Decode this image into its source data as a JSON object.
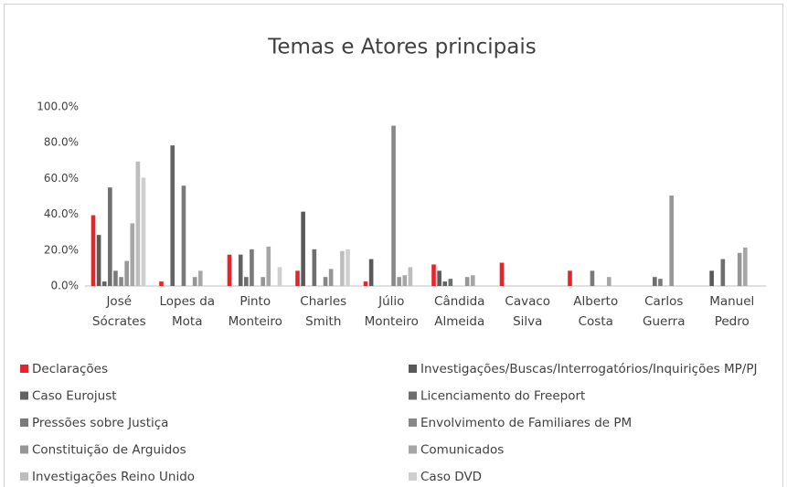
{
  "chart_data": {
    "type": "bar",
    "title": "Temas e Atores principais",
    "categories": [
      "José Sócrates",
      "Lopes da Mota",
      "Pinto Monteiro",
      "Charles Smith",
      "Júlio Monteiro",
      "Cândida Almeida",
      "Cavaco Silva",
      "Alberto Costa",
      "Carlos Guerra",
      "Manuel Pedro"
    ],
    "series": [
      {
        "name": "Declarações",
        "color": "#e3262c",
        "values": [
          39.5,
          2.5,
          17.5,
          8.5,
          2.5,
          12,
          13,
          8.5,
          0,
          0
        ]
      },
      {
        "name": "Investigações/Buscas/Interrogatórios/Inquirições MP/PJ",
        "color": "#595959",
        "values": [
          28.5,
          0,
          0,
          41.5,
          15,
          8.5,
          0,
          0,
          0,
          8.5
        ]
      },
      {
        "name": "Caso Eurojust",
        "color": "#636363",
        "values": [
          2.5,
          78.5,
          17.5,
          0,
          0,
          2.5,
          0,
          0,
          0,
          0
        ]
      },
      {
        "name": "Licenciamento do Freeport",
        "color": "#6e6e6e",
        "values": [
          55,
          0,
          5,
          20.5,
          0,
          4,
          0,
          0,
          5,
          15
        ]
      },
      {
        "name": "Pressões sobre Justiça",
        "color": "#7a7a7a",
        "values": [
          8.5,
          56,
          20.5,
          0,
          0,
          0,
          0,
          8.5,
          4,
          0
        ]
      },
      {
        "name": "Envolvimento de Familiares de PM",
        "color": "#878787",
        "values": [
          5,
          0,
          0,
          5,
          89.5,
          0,
          0,
          0,
          0,
          0
        ]
      },
      {
        "name": "Constituição de Arguidos",
        "color": "#969696",
        "values": [
          14,
          5,
          5,
          9.5,
          5,
          5,
          0,
          0,
          50.5,
          18.5
        ]
      },
      {
        "name": "Comunicados",
        "color": "#a6a6a6",
        "values": [
          35,
          8.5,
          22,
          0,
          6,
          6,
          0,
          5,
          0,
          21.5
        ]
      },
      {
        "name": "Investigações Reino Unido",
        "color": "#bdbdbd",
        "values": [
          69.5,
          0,
          0,
          19.5,
          10.5,
          0,
          0,
          0,
          0,
          0
        ]
      },
      {
        "name": "Caso DVD",
        "color": "#cfcfcf",
        "values": [
          60.5,
          0,
          10.5,
          20.5,
          0,
          0,
          0,
          0,
          0,
          0
        ]
      }
    ],
    "ylim": [
      0,
      100
    ],
    "yticks": [
      {
        "value": 0,
        "label": "0.0%"
      },
      {
        "value": 20,
        "label": "20.0%"
      },
      {
        "value": 40,
        "label": "40.0%"
      },
      {
        "value": 60,
        "label": "60.0%"
      },
      {
        "value": 80,
        "label": "80.0%"
      },
      {
        "value": 100,
        "label": "100.0%"
      }
    ],
    "grid": false,
    "legend": "bottom"
  }
}
